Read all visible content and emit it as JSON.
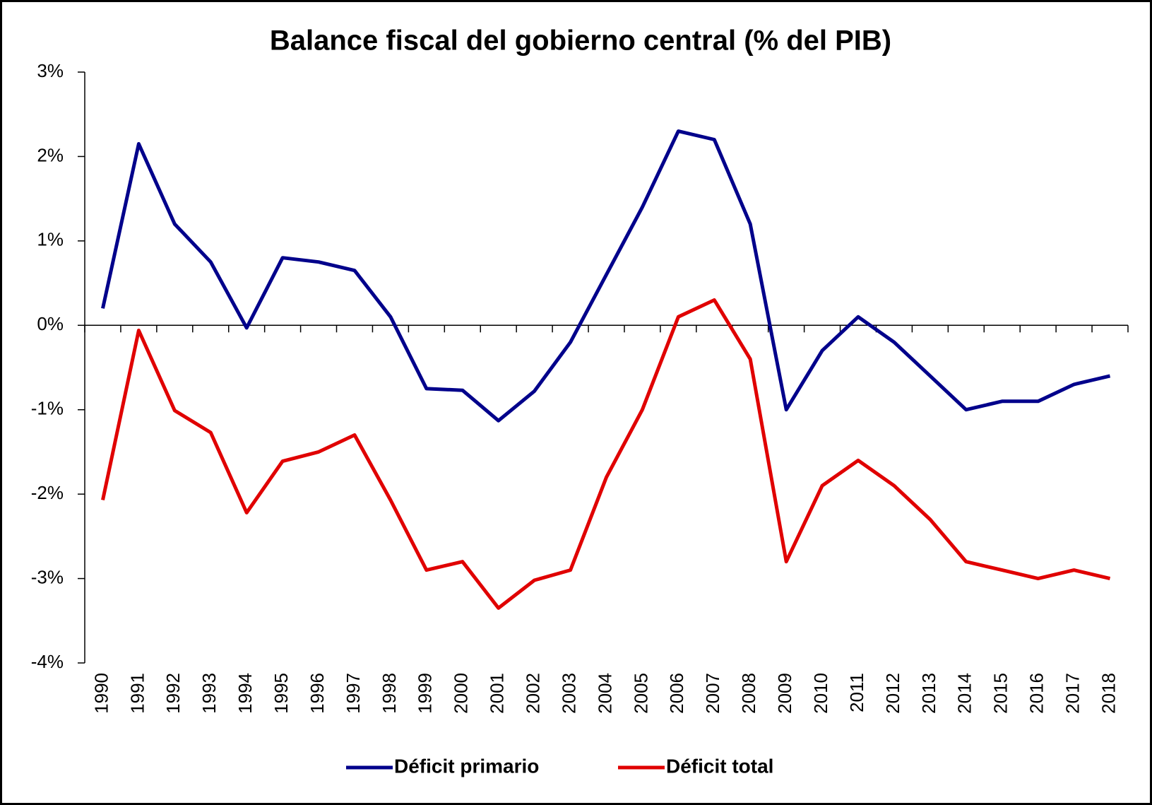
{
  "chart_data": {
    "type": "line",
    "title": "Balance fiscal del gobierno central (% del PIB)",
    "categories": [
      "1990",
      "1991",
      "1992",
      "1993",
      "1994",
      "1995",
      "1996",
      "1997",
      "1998",
      "1999",
      "2000",
      "2001",
      "2002",
      "2003",
      "2004",
      "2005",
      "2006",
      "2007",
      "2008",
      "2009",
      "2010",
      "2011",
      "2012",
      "2013",
      "2014",
      "2015",
      "2016",
      "2017",
      "2018"
    ],
    "series": [
      {
        "name": "Déficit primario",
        "color": "#00008b",
        "values": [
          0.2,
          2.15,
          1.2,
          0.75,
          -0.03,
          0.8,
          0.75,
          0.65,
          0.1,
          -0.75,
          -0.77,
          -1.13,
          -0.78,
          -0.2,
          0.6,
          1.4,
          2.3,
          2.2,
          1.2,
          -1.0,
          -0.3,
          0.1,
          -0.2,
          -0.6,
          -1.0,
          -0.9,
          -0.9,
          -0.7,
          -0.6
        ]
      },
      {
        "name": "Déficit total",
        "color": "#e00000",
        "values": [
          -2.07,
          -0.06,
          -1.01,
          -1.27,
          -2.22,
          -1.61,
          -1.5,
          -1.3,
          -2.07,
          -2.9,
          -2.8,
          -3.35,
          -3.02,
          -2.9,
          -1.8,
          -1.0,
          0.1,
          0.3,
          -0.4,
          -2.8,
          -1.9,
          -1.6,
          -1.9,
          -2.3,
          -2.8,
          -2.9,
          -3.0,
          -2.9,
          -3.0
        ]
      }
    ],
    "ylim": [
      -4,
      3
    ],
    "yticks": [
      {
        "value": -4,
        "label": "-4%"
      },
      {
        "value": -3,
        "label": "-3%"
      },
      {
        "value": -2,
        "label": "-2%"
      },
      {
        "value": -1,
        "label": "-1%"
      },
      {
        "value": 0,
        "label": "0%"
      },
      {
        "value": 1,
        "label": "1%"
      },
      {
        "value": 2,
        "label": "2%"
      },
      {
        "value": 3,
        "label": "3%"
      }
    ],
    "legend": "bottom"
  }
}
